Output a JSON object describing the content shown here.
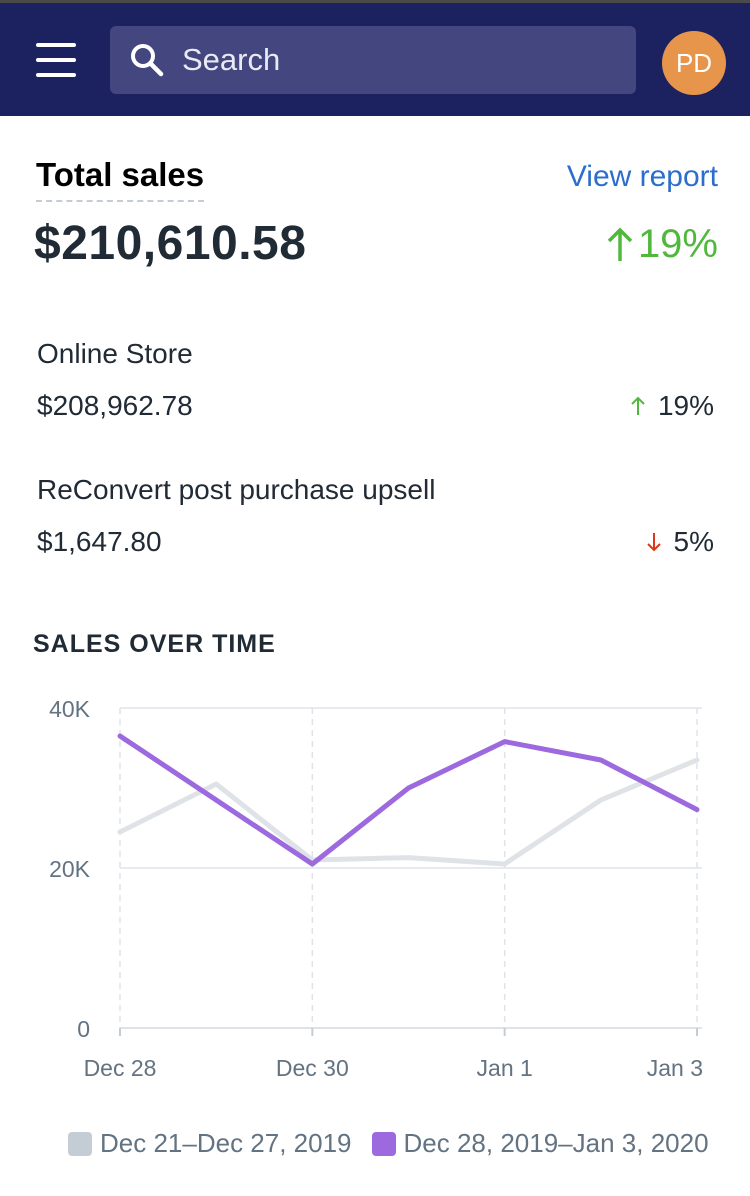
{
  "topbar": {
    "search_placeholder": "Search",
    "avatar_initials": "PD"
  },
  "summary": {
    "title": "Total sales",
    "view_report": "View report",
    "total_value": "$210,610.58",
    "total_change": "19%",
    "total_change_direction": "up"
  },
  "breakdown": [
    {
      "label": "Online Store",
      "value": "$208,962.78",
      "change": "19%",
      "direction": "up"
    },
    {
      "label": "ReConvert post purchase upsell",
      "value": "$1,647.80",
      "change": "5%",
      "direction": "down"
    }
  ],
  "colors": {
    "topbar": "#1c2260",
    "up": "#50b83c",
    "down": "#de3618",
    "link": "#2c6ecb",
    "series_previous": "#dfe3e8",
    "series_current": "#9c6ade"
  },
  "chart_title": "SALES OVER TIME",
  "chart_data": {
    "type": "line",
    "title": "SALES OVER TIME",
    "x_tick_labels": [
      "Dec 28",
      "Dec 30",
      "Jan 1",
      "Jan 3"
    ],
    "y_tick_labels": [
      "0",
      "20K",
      "40K"
    ],
    "ylim": [
      0,
      40000
    ],
    "grid": true,
    "legend_position": "bottom",
    "series": [
      {
        "name": "Dec 21–Dec 27, 2019",
        "color": "#dfe3e8",
        "values": [
          24500,
          30500,
          21000,
          21300,
          20500,
          28500,
          33500
        ]
      },
      {
        "name": "Dec 28, 2019–Jan 3, 2020",
        "color": "#9c6ade",
        "values": [
          36500,
          28500,
          20500,
          30000,
          35800,
          33500,
          27300
        ]
      }
    ]
  }
}
